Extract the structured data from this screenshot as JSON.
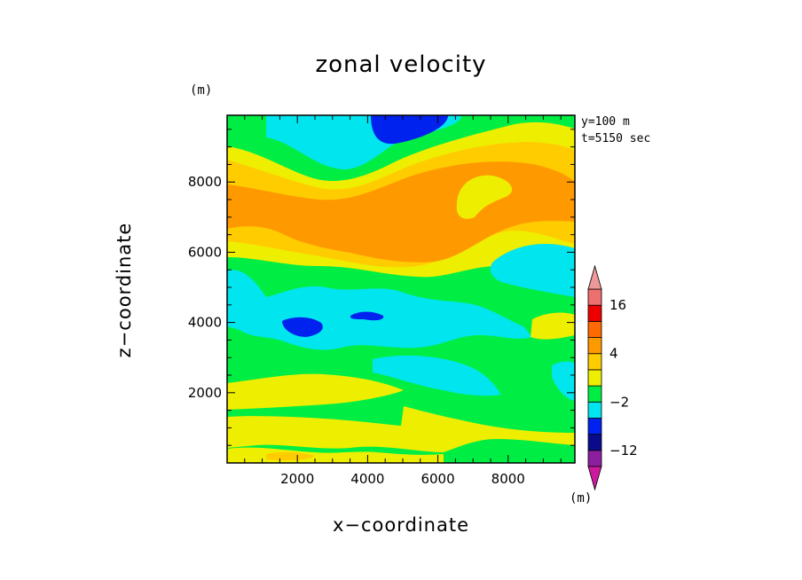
{
  "chart_data": {
    "type": "heatmap",
    "title": "zonal velocity",
    "xlabel": "x−coordinate",
    "ylabel": "z−coordinate",
    "x_unit": "(m)",
    "z_unit": "(m)",
    "colorbar_unit": "(m)",
    "annotations": [
      "y=100 m",
      "t=5150 sec"
    ],
    "xlim": [
      0,
      9900
    ],
    "ylim": [
      0,
      9900
    ],
    "x_ticks": [
      2000,
      4000,
      6000,
      8000
    ],
    "y_ticks": [
      2000,
      4000,
      6000,
      8000
    ],
    "colorbar": {
      "levels": [
        -24,
        -18,
        -12,
        -8,
        -4,
        -2,
        0,
        2,
        4,
        8,
        12,
        16,
        20
      ],
      "colors": [
        "#cc1a9c",
        "#8b1fa0",
        "#0a0a8c",
        "#0022ee",
        "#00e5ee",
        "#00ee44",
        "#eeee00",
        "#ffcc00",
        "#ff9900",
        "#ff6a00",
        "#ee0000",
        "#ee6f6f",
        "#ee9999"
      ],
      "labeled_levels": [
        16,
        4,
        -2,
        -12
      ],
      "labels": [
        "16",
        "4",
        "−2",
        "−12"
      ],
      "extends": "both"
    },
    "fields": [
      {
        "name": "green background band (upper)",
        "value_range": [
          -2,
          0
        ]
      },
      {
        "name": "yellow band (z≈9000)",
        "value_range": [
          0,
          2
        ]
      },
      {
        "name": "orange core (z≈7000)",
        "value_range": [
          4,
          8
        ]
      },
      {
        "name": "light orange halo (z≈6500-8500)",
        "value_range": [
          2,
          4
        ]
      },
      {
        "name": "cyan patches (z≈4000)",
        "value_range": [
          -4,
          -2
        ]
      },
      {
        "name": "blue cores (z≈4000, z≈9800)",
        "value_range": [
          -8,
          -4
        ]
      },
      {
        "name": "yellow band (z≈2200)",
        "value_range": [
          0,
          2
        ]
      },
      {
        "name": "yellow band (z≈600-1600)",
        "value_range": [
          0,
          2
        ]
      }
    ]
  }
}
